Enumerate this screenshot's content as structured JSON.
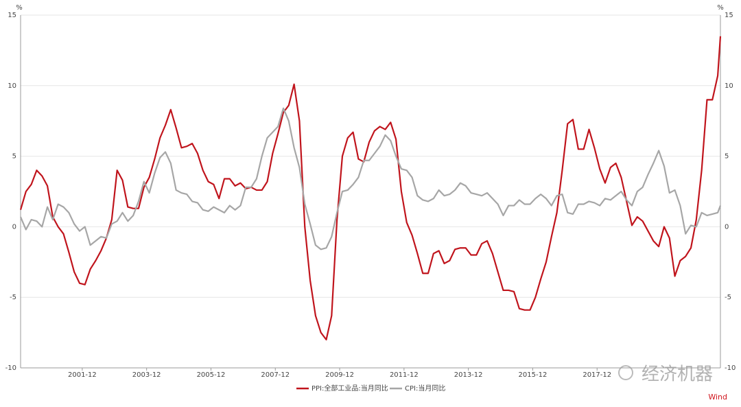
{
  "chart_data": {
    "type": "line",
    "y_unit": "%",
    "y2_unit": "%",
    "x": [
      "2000-01",
      "2000-03",
      "2000-05",
      "2000-07",
      "2000-09",
      "2000-11",
      "2001-01",
      "2001-03",
      "2001-05",
      "2001-07",
      "2001-09",
      "2001-11",
      "2002-01",
      "2002-03",
      "2002-05",
      "2002-07",
      "2002-09",
      "2002-11",
      "2003-01",
      "2003-03",
      "2003-05",
      "2003-07",
      "2003-09",
      "2003-11",
      "2004-01",
      "2004-03",
      "2004-05",
      "2004-07",
      "2004-09",
      "2004-11",
      "2005-01",
      "2005-03",
      "2005-05",
      "2005-07",
      "2005-09",
      "2005-11",
      "2006-01",
      "2006-03",
      "2006-05",
      "2006-07",
      "2006-09",
      "2006-11",
      "2007-01",
      "2007-03",
      "2007-05",
      "2007-07",
      "2007-09",
      "2007-11",
      "2008-01",
      "2008-03",
      "2008-05",
      "2008-07",
      "2008-09",
      "2008-11",
      "2009-01",
      "2009-03",
      "2009-05",
      "2009-07",
      "2009-09",
      "2009-11",
      "2010-01",
      "2010-03",
      "2010-05",
      "2010-07",
      "2010-09",
      "2010-11",
      "2011-01",
      "2011-03",
      "2011-05",
      "2011-07",
      "2011-09",
      "2011-11",
      "2012-01",
      "2012-03",
      "2012-05",
      "2012-07",
      "2012-09",
      "2012-11",
      "2013-01",
      "2013-03",
      "2013-05",
      "2013-07",
      "2013-09",
      "2013-11",
      "2014-01",
      "2014-03",
      "2014-05",
      "2014-07",
      "2014-09",
      "2014-11",
      "2015-01",
      "2015-03",
      "2015-05",
      "2015-07",
      "2015-09",
      "2015-11",
      "2016-01",
      "2016-03",
      "2016-05",
      "2016-07",
      "2016-09",
      "2016-11",
      "2017-01",
      "2017-03",
      "2017-05",
      "2017-07",
      "2017-09",
      "2017-11",
      "2018-01",
      "2018-03",
      "2018-05",
      "2018-07",
      "2018-09",
      "2018-11",
      "2019-01",
      "2019-03",
      "2019-05",
      "2019-07",
      "2019-09",
      "2019-11",
      "2020-01",
      "2020-03",
      "2020-05",
      "2020-07",
      "2020-09",
      "2020-11",
      "2021-01",
      "2021-03",
      "2021-05",
      "2021-07",
      "2021-09",
      "2021-10"
    ],
    "series": [
      {
        "name": "PPI:全部工业品:当月同比",
        "color": "#c0141c",
        "axis": "y",
        "values": [
          1.2,
          2.5,
          3.0,
          4.0,
          3.6,
          2.9,
          0.7,
          0,
          -0.5,
          -1.8,
          -3.2,
          -4.0,
          -4.1,
          -3.0,
          -2.4,
          -1.7,
          -0.8,
          0.5,
          4.0,
          3.3,
          1.4,
          1.3,
          1.3,
          2.8,
          3.5,
          4.8,
          6.3,
          7.2,
          8.3,
          7.0,
          5.6,
          5.7,
          5.9,
          5.2,
          4.0,
          3.2,
          3.0,
          2.0,
          3.4,
          3.4,
          2.9,
          3.1,
          2.7,
          2.8,
          2.6,
          2.6,
          3.2,
          5.2,
          6.6,
          8.1,
          8.6,
          10.1,
          7.5,
          0,
          -3.8,
          -6.3,
          -7.5,
          -8.0,
          -6.3,
          0.5,
          5.0,
          6.3,
          6.7,
          4.8,
          4.6,
          6.0,
          6.8,
          7.1,
          6.9,
          7.4,
          6.2,
          2.5,
          0.3,
          -0.6,
          -1.9,
          -3.3,
          -3.3,
          -1.9,
          -1.7,
          -2.6,
          -2.4,
          -1.6,
          -1.5,
          -1.5,
          -2.0,
          -2.0,
          -1.2,
          -1.0,
          -1.9,
          -3.2,
          -4.5,
          -4.5,
          -4.6,
          -5.8,
          -5.9,
          -5.9,
          -5.0,
          -3.7,
          -2.5,
          -0.7,
          1.0,
          4.0,
          7.3,
          7.6,
          5.5,
          5.5,
          6.9,
          5.6,
          4.1,
          3.1,
          4.2,
          4.5,
          3.5,
          1.8,
          0.1,
          0.7,
          0.4,
          -0.3,
          -1.0,
          -1.4,
          0.0,
          -0.8,
          -3.5,
          -2.4,
          -2.1,
          -1.5,
          0.5,
          4.0,
          9.0,
          9.0,
          10.7,
          13.5
        ]
      },
      {
        "name": "CPI:当月同比",
        "color": "#a6a6a6",
        "axis": "y2",
        "values": [
          0.7,
          -0.2,
          0.5,
          0.4,
          0,
          1.4,
          0.5,
          1.6,
          1.4,
          1.0,
          0.2,
          -0.3,
          0,
          -1.3,
          -1.0,
          -0.7,
          -0.8,
          0.2,
          0.4,
          1.0,
          0.4,
          0.8,
          1.8,
          3.2,
          2.4,
          3.8,
          4.9,
          5.3,
          4.5,
          2.6,
          2.4,
          2.3,
          1.8,
          1.7,
          1.2,
          1.1,
          1.4,
          1.2,
          1.0,
          1.5,
          1.2,
          1.5,
          2.8,
          2.8,
          3.4,
          5.0,
          6.3,
          6.7,
          7.1,
          8.4,
          7.5,
          5.6,
          4.2,
          1.6,
          0.2,
          -1.3,
          -1.6,
          -1.5,
          -0.7,
          1.0,
          2.5,
          2.6,
          3.0,
          3.5,
          4.7,
          4.7,
          5.2,
          5.7,
          6.5,
          6.1,
          5.0,
          4.1,
          4.0,
          3.5,
          2.2,
          1.9,
          1.8,
          2.0,
          2.6,
          2.2,
          2.3,
          2.6,
          3.1,
          2.9,
          2.4,
          2.3,
          2.2,
          2.4,
          2.0,
          1.6,
          0.8,
          1.5,
          1.5,
          1.9,
          1.6,
          1.6,
          2.0,
          2.3,
          2.0,
          1.5,
          2.2,
          2.3,
          1.0,
          0.9,
          1.6,
          1.6,
          1.8,
          1.7,
          1.5,
          2.0,
          1.9,
          2.2,
          2.5,
          1.9,
          1.5,
          2.5,
          2.8,
          3.7,
          4.5,
          5.4,
          4.3,
          2.4,
          2.6,
          1.5,
          -0.5,
          0.1,
          0.0,
          1.0,
          0.8,
          0.9,
          1.0,
          1.5
        ]
      }
    ],
    "xlim": [
      "2000-01",
      "2021-10"
    ],
    "xticks": [
      "2001-12",
      "2003-12",
      "2005-12",
      "2007-12",
      "2009-12",
      "2011-12",
      "2013-12",
      "2015-12",
      "2017-12"
    ],
    "ylim": [
      -10,
      15
    ],
    "yticks": [
      15,
      10,
      5,
      0,
      -5,
      -10
    ],
    "y2lim": [
      -10,
      15
    ],
    "y2ticks": [
      15,
      10,
      5,
      0,
      -5,
      -10
    ],
    "grid": true,
    "legend": "bottom",
    "watermark": "经济机器",
    "source": "Wind"
  }
}
